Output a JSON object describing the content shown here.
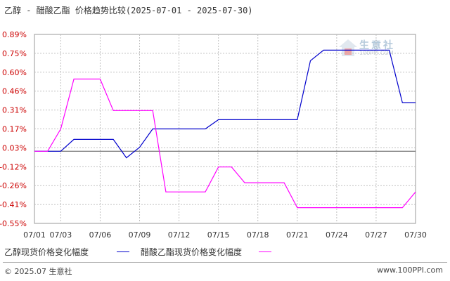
{
  "title": "乙醇 - 醋酸乙酯 价格趋势比较(2025-07-01 - 2025-07-30)",
  "colors": {
    "ethanol": "#0000cc",
    "ethyl_acetate": "#ff00ff",
    "y_label": "#cc0000",
    "grid": "#c0c0c0",
    "zero_line": "#555555"
  },
  "watermark": {
    "text": "生意社",
    "sub": "100PPI.COM",
    "icon": "house-logo-icon"
  },
  "footer": {
    "left": "© 2025.07 生意社",
    "right": "www.100PPI.com"
  },
  "chart_data": {
    "type": "line",
    "title": "乙醇 - 醋酸乙酯 价格趋势比较(2025-07-01 - 2025-07-30)",
    "xlabel": "",
    "ylabel": "",
    "x_tick_labels": [
      "07/01",
      "07/03",
      "07/06",
      "07/09",
      "07/12",
      "07/15",
      "07/18",
      "07/21",
      "07/24",
      "07/27",
      "07/30"
    ],
    "y_tick_labels": [
      "0.89%",
      "0.75%",
      "0.60%",
      "0.46%",
      "0.31%",
      "0.17%",
      "0.03%",
      "-0.12%",
      "-0.26%",
      "-0.41%",
      "-0.55%"
    ],
    "ylim": [
      -0.55,
      0.89
    ],
    "grid": true,
    "legend_position": "bottom",
    "series": [
      {
        "name": "乙醇现货价格变化幅度",
        "color": "#0000cc",
        "points": [
          [
            "07/01",
            0.0
          ],
          [
            "07/03",
            0.0
          ],
          [
            "07/04",
            0.09
          ],
          [
            "07/07",
            0.09
          ],
          [
            "07/08",
            -0.05
          ],
          [
            "07/09",
            0.03
          ],
          [
            "07/10",
            0.17
          ],
          [
            "07/14",
            0.17
          ],
          [
            "07/15",
            0.24
          ],
          [
            "07/21",
            0.24
          ],
          [
            "07/22",
            0.69
          ],
          [
            "07/23",
            0.77
          ],
          [
            "07/28",
            0.77
          ],
          [
            "07/29",
            0.37
          ],
          [
            "07/30",
            0.37
          ]
        ]
      },
      {
        "name": "醋酸乙酯现货价格变化幅度",
        "color": "#ff00ff",
        "points": [
          [
            "07/01",
            0.0
          ],
          [
            "07/02",
            0.0
          ],
          [
            "07/03",
            0.17
          ],
          [
            "07/04",
            0.55
          ],
          [
            "07/06",
            0.55
          ],
          [
            "07/07",
            0.31
          ],
          [
            "07/10",
            0.31
          ],
          [
            "07/11",
            -0.31
          ],
          [
            "07/14",
            -0.31
          ],
          [
            "07/15",
            -0.12
          ],
          [
            "07/16",
            -0.12
          ],
          [
            "07/17",
            -0.24
          ],
          [
            "07/20",
            -0.24
          ],
          [
            "07/21",
            -0.43
          ],
          [
            "07/29",
            -0.43
          ],
          [
            "07/30",
            -0.31
          ]
        ]
      }
    ]
  }
}
